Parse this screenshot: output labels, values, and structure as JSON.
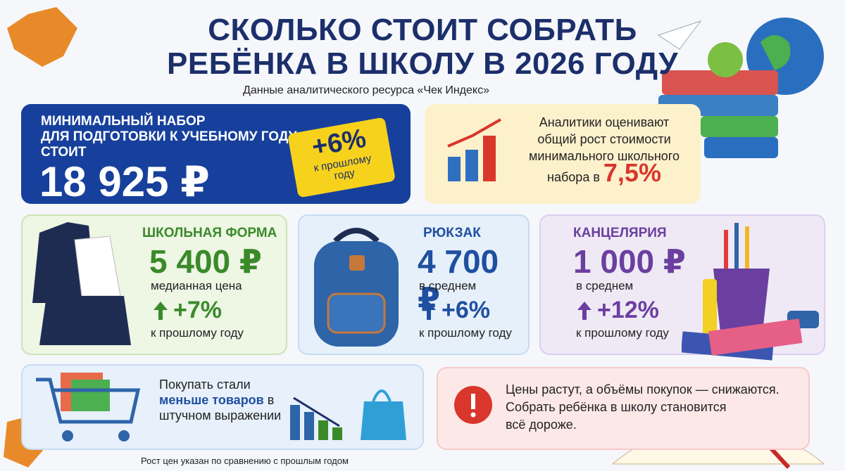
{
  "header": {
    "title_lines": [
      "СКОЛЬКО СТОИТ СОБРАТЬ",
      "РЕБЁНКА В ШКОЛУ В 2026 ГОДУ"
    ],
    "subtitle": "Данные аналитического ресурса «Чек Индекс»"
  },
  "main_card": {
    "label_lines": [
      "МИНИМАЛЬНЫЙ НАБОР",
      "ДЛЯ ПОДГОТОВКИ К УЧЕБНОМУ ГОДУ",
      "СТОИТ"
    ],
    "price": "18 925 ₽",
    "tag_change": "+6%",
    "tag_caption_lines": [
      "к прошлому",
      "году"
    ]
  },
  "analytics_card": {
    "text_lines": [
      "Аналитики оценивают",
      "общий рост стоимости",
      "минимального школьного",
      "набора в"
    ],
    "value": "7,5%"
  },
  "categories": [
    {
      "title": "ШКОЛЬНАЯ ФОРМА",
      "price": "5 400 ₽",
      "caption": "медианная цена",
      "change": "+7%",
      "change_caption": "к прошлому году"
    },
    {
      "title": "РЮКЗАК",
      "price": "4 700 ₽",
      "caption": "в среднем",
      "change": "+6%",
      "change_caption": "к прошлому году"
    },
    {
      "title": "КАНЦЕЛЯРИЯ",
      "price": "1 000 ₽",
      "caption": "в среднем",
      "change": "+12%",
      "change_caption": "к прошлому году"
    }
  ],
  "purchases_card": {
    "text_before": "Покупать стали ",
    "text_bold": "меньше товаров",
    "text_after": " в штучном выражении"
  },
  "warning_card": {
    "lines": [
      "Цены растут, а объёмы покупок — снижаются.",
      "Собрать ребёнка в школу становится",
      "всё дороже."
    ]
  },
  "footnote": "Рост цен указан по сравнению с прошлым годом"
}
